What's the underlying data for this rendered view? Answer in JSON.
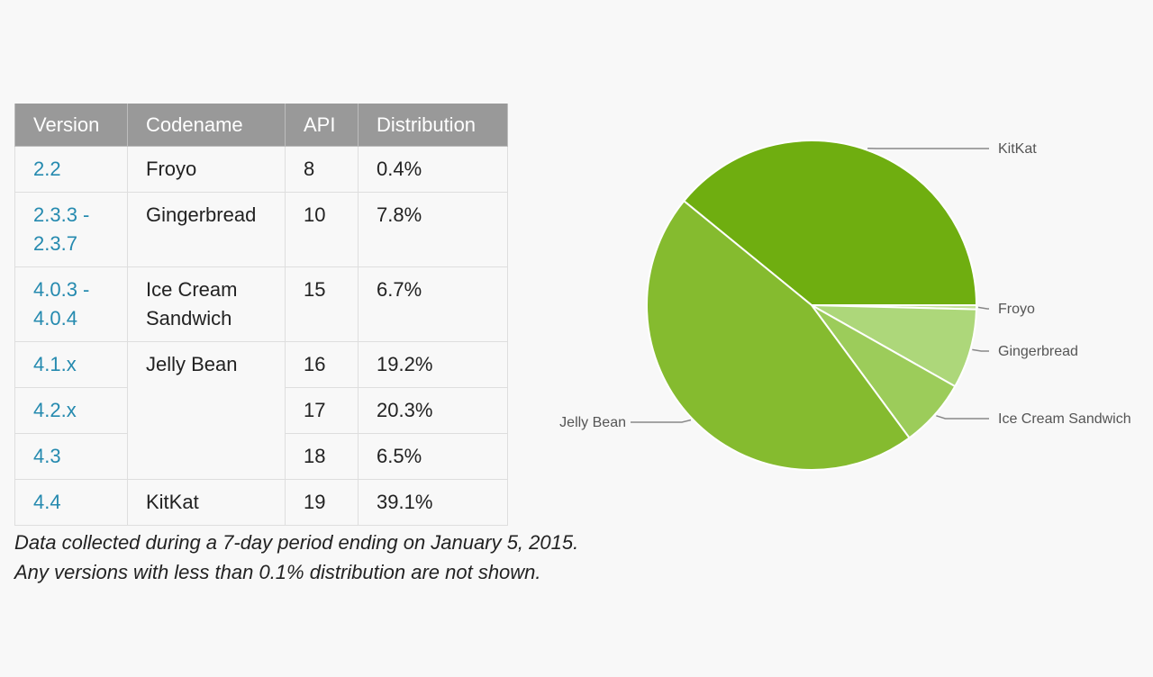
{
  "table": {
    "headers": [
      "Version",
      "Codename",
      "API",
      "Distribution"
    ],
    "rows": [
      {
        "version": "2.2",
        "codename": "Froyo",
        "api": "8",
        "distribution": "0.4%"
      },
      {
        "version": "2.3.3 - 2.3.7",
        "codename": "Gingerbread",
        "api": "10",
        "distribution": "7.8%"
      },
      {
        "version": "4.0.3 - 4.0.4",
        "codename": "Ice Cream Sandwich",
        "api": "15",
        "distribution": "6.7%"
      },
      {
        "version": "4.1.x",
        "codename": "Jelly Bean",
        "api": "16",
        "distribution": "19.2%"
      },
      {
        "version": "4.2.x",
        "codename": "",
        "api": "17",
        "distribution": "20.3%"
      },
      {
        "version": "4.3",
        "codename": "",
        "api": "18",
        "distribution": "6.5%"
      },
      {
        "version": "4.4",
        "codename": "KitKat",
        "api": "19",
        "distribution": "39.1%"
      }
    ]
  },
  "note": {
    "line1": "Data collected during a 7-day period ending on January 5, 2015.",
    "line2": "Any versions with less than 0.1% distribution are not shown."
  },
  "chart_data": {
    "type": "pie",
    "title": "",
    "slices": [
      {
        "label": "KitKat",
        "value": 39.1,
        "color": "#6fae10"
      },
      {
        "label": "Froyo",
        "value": 0.4,
        "color": "#c2e095"
      },
      {
        "label": "Gingerbread",
        "value": 7.8,
        "color": "#add77a"
      },
      {
        "label": "Ice Cream Sandwich",
        "value": 6.7,
        "color": "#9ccc5a"
      },
      {
        "label": "Jelly Bean",
        "value": 46.0,
        "color": "#85bb2f"
      }
    ],
    "legend": "labels with leader lines"
  }
}
